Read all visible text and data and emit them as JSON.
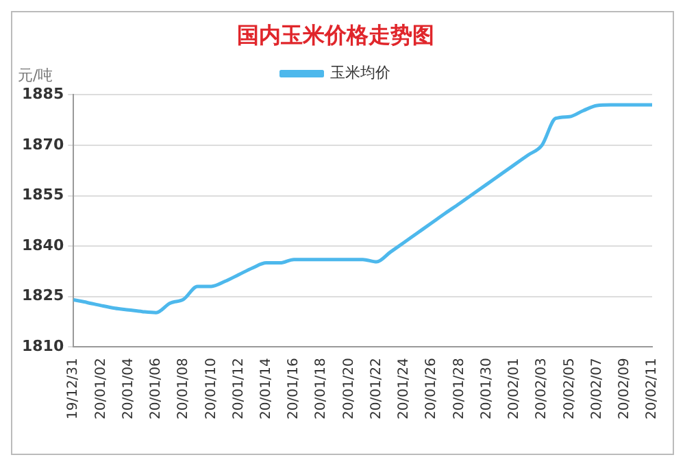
{
  "chart_data": {
    "type": "line",
    "title": "国内玉米价格走势图",
    "ylabel": "元/吨",
    "categories": [
      "19/12/31",
      null,
      "20/01/02",
      null,
      "20/01/04",
      null,
      "20/01/06",
      null,
      "20/01/08",
      null,
      "20/01/10",
      null,
      "20/01/12",
      null,
      "20/01/14",
      null,
      "20/01/16",
      null,
      "20/01/18",
      null,
      "20/01/20",
      null,
      "20/01/22",
      null,
      "20/01/24",
      null,
      "20/01/26",
      null,
      "20/01/28",
      null,
      "20/01/30",
      null,
      "20/02/01",
      null,
      "20/02/03",
      null,
      "20/02/05",
      null,
      "20/02/07",
      null,
      "20/02/09",
      null,
      "20/02/11"
    ],
    "series": [
      {
        "name": "玉米均价",
        "color": "#4db8ec",
        "values": [
          1824,
          1823.2,
          1822.3,
          1821.5,
          1821,
          1820.5,
          1820.2,
          1823,
          1824.2,
          1828,
          1828,
          1829.5,
          1831.5,
          1833.5,
          1835,
          1835,
          1836,
          1836,
          1836,
          1836,
          1836,
          1836,
          1835.3,
          1838.2,
          1841.1,
          1844,
          1846.9,
          1849.8,
          1852.6,
          1855.5,
          1858.4,
          1861.3,
          1864.2,
          1867.1,
          1870,
          1878,
          1878.5,
          1880.3,
          1881.8,
          1882,
          1882,
          1882,
          1882
        ]
      }
    ],
    "ylim": [
      1810,
      1885
    ],
    "yticks": [
      1810,
      1825,
      1840,
      1855,
      1870,
      1885
    ],
    "grid": "y",
    "legend": "top",
    "marker": "none",
    "line_style": "solid"
  }
}
